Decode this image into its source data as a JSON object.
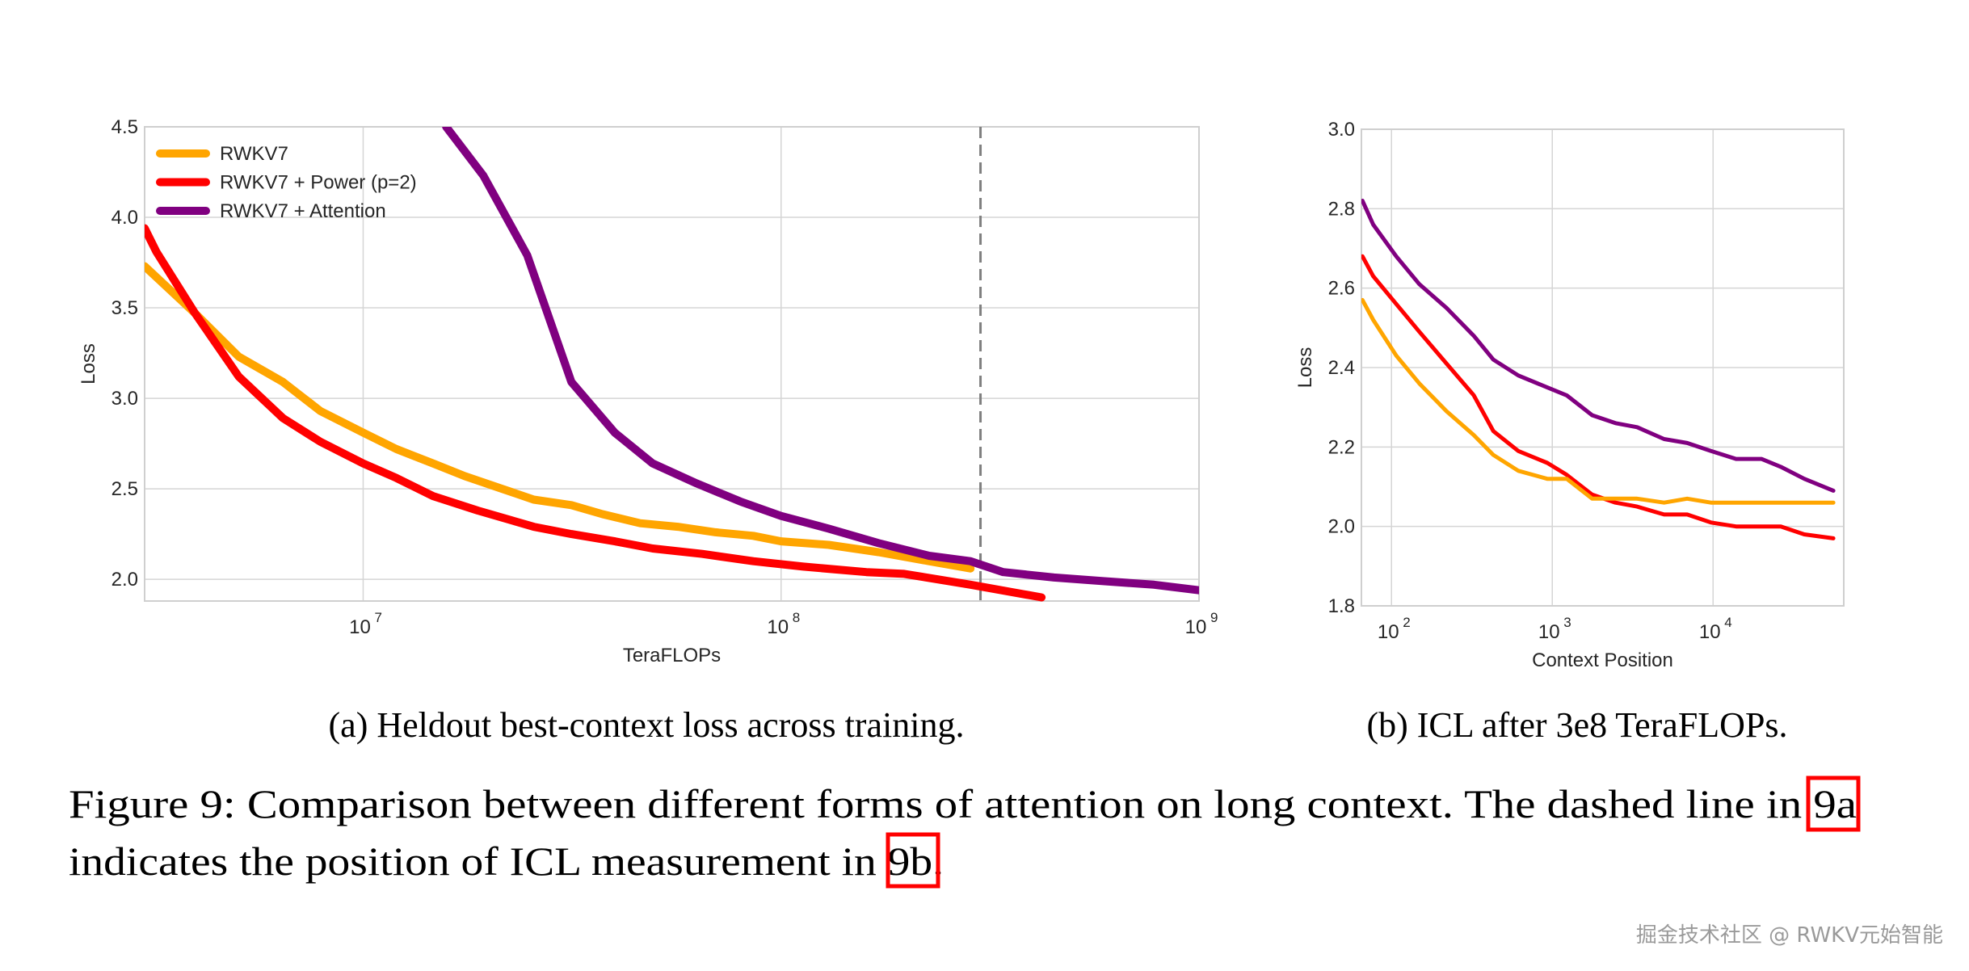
{
  "chart_data": [
    {
      "type": "line",
      "xlabel": "TeraFLOPs",
      "ylabel": "Loss",
      "xscale": "log",
      "xlim": [
        3000000.0,
        1000000000.0
      ],
      "ylim": [
        1.88,
        4.5
      ],
      "xticks": [
        {
          "base": "10",
          "exp": "7"
        },
        {
          "base": "10",
          "exp": "8"
        },
        {
          "base": "10",
          "exp": "9"
        }
      ],
      "xtick_values": [
        10000000.0,
        100000000.0,
        1000000000.0
      ],
      "yticks": [
        "2.0",
        "2.5",
        "3.0",
        "3.5",
        "4.0",
        "4.5"
      ],
      "grid": true,
      "legend": "top-left",
      "vline": {
        "x": 300000000.0,
        "style": "dashed",
        "color": "#808080"
      },
      "series": [
        {
          "name": "RWKV7",
          "color": "#FFA500",
          "x": [
            3000000.0,
            3960000.0,
            5040000.0,
            6430000.0,
            7900000.0,
            10000000.0,
            12000000.0,
            14700000.0,
            17500000.0,
            21500000.0,
            25600000.0,
            31500000.0,
            37400000.0,
            46000000.0,
            56600000.0,
            69700000.0,
            85800000.0,
            100000000.0,
            130000000.0,
            171000000.0,
            226000000.0,
            284000000.0
          ],
          "y": [
            3.73,
            3.47,
            3.23,
            3.09,
            2.93,
            2.81,
            2.72,
            2.64,
            2.57,
            2.5,
            2.44,
            2.41,
            2.36,
            2.31,
            2.29,
            2.26,
            2.24,
            2.21,
            2.19,
            2.15,
            2.1,
            2.06
          ]
        },
        {
          "name": "RWKV7 + Power (p=2)",
          "color": "#FF0000",
          "x": [
            3000000.0,
            3200000.0,
            3960000.0,
            5040000.0,
            6430000.0,
            7900000.0,
            10000000.0,
            12000000.0,
            14700000.0,
            18800000.0,
            25600000.0,
            31500000.0,
            40000000.0,
            49300000.0,
            64800000.0,
            85800000.0,
            113000000.0,
            160000000.0,
            197000000.0,
            284000000.0,
            420000000.0
          ],
          "y": [
            3.94,
            3.81,
            3.47,
            3.12,
            2.89,
            2.76,
            2.64,
            2.56,
            2.46,
            2.38,
            2.29,
            2.25,
            2.21,
            2.17,
            2.14,
            2.1,
            2.07,
            2.04,
            2.03,
            1.97,
            1.9
          ]
        },
        {
          "name": "RWKV7 + Attention",
          "color": "#800080",
          "x": [
            15800000.0,
            19400000.0,
            24700000.0,
            31500000.0,
            40000000.0,
            49300000.0,
            62800000.0,
            79900000.0,
            100000000.0,
            130000000.0,
            171000000.0,
            226000000.0,
            284000000.0,
            340000000.0,
            450000000.0,
            590000000.0,
            780000000.0,
            1000000000.0
          ],
          "y": [
            4.5,
            4.23,
            3.79,
            3.09,
            2.81,
            2.64,
            2.53,
            2.43,
            2.35,
            2.28,
            2.2,
            2.13,
            2.1,
            2.04,
            2.01,
            1.99,
            1.97,
            1.94
          ]
        }
      ],
      "caption": "(a) Heldout best-context loss across training."
    },
    {
      "type": "line",
      "xlabel": "Context Position",
      "ylabel": "Loss",
      "xscale": "log",
      "xlim": [
        65,
        65000
      ],
      "ylim": [
        1.8,
        3.0
      ],
      "xticks": [
        {
          "base": "10",
          "exp": "2"
        },
        {
          "base": "10",
          "exp": "3"
        },
        {
          "base": "10",
          "exp": "4"
        }
      ],
      "xtick_values": [
        100,
        1000,
        10000
      ],
      "yticks": [
        "1.8",
        "2.0",
        "2.2",
        "2.4",
        "2.6",
        "2.8",
        "3.0"
      ],
      "grid": true,
      "series": [
        {
          "color": "#800080",
          "x": [
            66,
            77,
            107,
            149,
            220,
            325,
            430,
            615,
            930,
            1230,
            1770,
            2470,
            3370,
            4960,
            6900,
            9700,
            13900,
            20000,
            26400,
            36900,
            56000
          ],
          "y": [
            2.82,
            2.76,
            2.68,
            2.61,
            2.55,
            2.48,
            2.42,
            2.38,
            2.35,
            2.33,
            2.28,
            2.26,
            2.25,
            2.22,
            2.21,
            2.19,
            2.17,
            2.17,
            2.15,
            2.12,
            2.09
          ]
        },
        {
          "color": "#FF0000",
          "x": [
            66,
            77,
            107,
            149,
            220,
            325,
            430,
            615,
            930,
            1230,
            1770,
            2470,
            3370,
            4960,
            6900,
            9700,
            13900,
            20000,
            26400,
            36900,
            56000
          ],
          "y": [
            2.68,
            2.63,
            2.56,
            2.49,
            2.41,
            2.33,
            2.24,
            2.19,
            2.16,
            2.13,
            2.08,
            2.06,
            2.05,
            2.03,
            2.03,
            2.01,
            2.0,
            2.0,
            2.0,
            1.98,
            1.97
          ]
        },
        {
          "color": "#FFA500",
          "x": [
            66,
            77,
            107,
            149,
            220,
            325,
            430,
            615,
            930,
            1230,
            1770,
            2470,
            3370,
            4960,
            6900,
            9700,
            13900,
            20000,
            26400,
            36900,
            56000
          ],
          "y": [
            2.57,
            2.52,
            2.43,
            2.36,
            2.29,
            2.23,
            2.18,
            2.14,
            2.12,
            2.12,
            2.07,
            2.07,
            2.07,
            2.06,
            2.07,
            2.06,
            2.06,
            2.06,
            2.06,
            2.06,
            2.06
          ]
        }
      ],
      "caption": "(b) ICL after 3e8 TeraFLOPs."
    }
  ],
  "figure_caption": {
    "line1": "Figure 9: Comparison between different forms of attention on long context. The dashed line in 9a",
    "line2": "indicates the position of ICL measurement in 9b.",
    "link_a": "9a",
    "link_b": "9b",
    "link_box_color": "#FF0000"
  },
  "watermark": "掘金技术社区 @ RWKV元始智能"
}
